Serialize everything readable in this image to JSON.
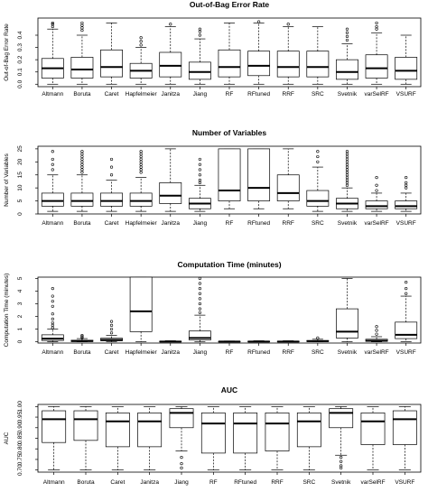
{
  "chart_data": [
    {
      "type": "boxplot",
      "title": "Out-of-Bag Error Rate",
      "ylabel": "Out-of-Bag Error Rate",
      "ylim": [
        -0.02,
        0.54
      ],
      "yticks": [
        0.0,
        0.1,
        0.2,
        0.3,
        0.4
      ],
      "ytick_labels": [
        "0.0",
        "0.1",
        "0.2",
        "0.3",
        "0.4"
      ],
      "categories": [
        "Altmann",
        "Boruta",
        "Caret",
        "Hapfelmeier",
        "Janitza",
        "Jiang",
        "RF",
        "RFtuned",
        "RRF",
        "SRC",
        "Svetnik",
        "varSelRF",
        "VSURF"
      ],
      "boxes": [
        {
          "min": 0.0,
          "q1": 0.05,
          "median": 0.13,
          "q3": 0.21,
          "max": 0.45,
          "outliers": [
            0.47,
            0.49,
            0.5
          ]
        },
        {
          "min": 0.0,
          "q1": 0.05,
          "median": 0.12,
          "q3": 0.22,
          "max": 0.4,
          "outliers": [
            0.44,
            0.46,
            0.48,
            0.5
          ]
        },
        {
          "min": 0.0,
          "q1": 0.06,
          "median": 0.14,
          "q3": 0.28,
          "max": 0.5,
          "outliers": []
        },
        {
          "min": 0.0,
          "q1": 0.05,
          "median": 0.11,
          "q3": 0.17,
          "max": 0.3,
          "outliers": [
            0.32,
            0.35,
            0.38
          ]
        },
        {
          "min": 0.0,
          "q1": 0.06,
          "median": 0.15,
          "q3": 0.26,
          "max": 0.47,
          "outliers": [
            0.49
          ]
        },
        {
          "min": 0.0,
          "q1": 0.04,
          "median": 0.1,
          "q3": 0.18,
          "max": 0.37,
          "outliers": [
            0.4,
            0.43,
            0.45
          ]
        },
        {
          "min": 0.0,
          "q1": 0.06,
          "median": 0.14,
          "q3": 0.28,
          "max": 0.5,
          "outliers": []
        },
        {
          "min": 0.0,
          "q1": 0.07,
          "median": 0.15,
          "q3": 0.27,
          "max": 0.5,
          "outliers": [
            0.51
          ]
        },
        {
          "min": 0.0,
          "q1": 0.06,
          "median": 0.14,
          "q3": 0.27,
          "max": 0.47,
          "outliers": [
            0.49
          ]
        },
        {
          "min": 0.0,
          "q1": 0.06,
          "median": 0.14,
          "q3": 0.27,
          "max": 0.47,
          "outliers": []
        },
        {
          "min": 0.0,
          "q1": 0.04,
          "median": 0.1,
          "q3": 0.2,
          "max": 0.33,
          "outliers": [
            0.36,
            0.39,
            0.42,
            0.45
          ]
        },
        {
          "min": 0.0,
          "q1": 0.05,
          "median": 0.13,
          "q3": 0.24,
          "max": 0.42,
          "outliers": [
            0.45,
            0.47,
            0.5
          ]
        },
        {
          "min": 0.0,
          "q1": 0.04,
          "median": 0.11,
          "q3": 0.22,
          "max": 0.4,
          "outliers": []
        }
      ]
    },
    {
      "type": "boxplot",
      "title": "Number of Variables",
      "ylabel": "Number of Variables",
      "ylim": [
        0,
        26
      ],
      "yticks": [
        0,
        5,
        10,
        15,
        20,
        25
      ],
      "ytick_labels": [
        "0",
        "5",
        "10",
        "15",
        "20",
        "25"
      ],
      "categories": [
        "Altmann",
        "Boruta",
        "Caret",
        "Hapfelmeier",
        "Janitza",
        "Jiang",
        "RF",
        "RFtuned",
        "RRF",
        "SRC",
        "Svetnik",
        "varSelRF",
        "VSURF"
      ],
      "boxes": [
        {
          "min": 1,
          "q1": 3,
          "median": 5,
          "q3": 8,
          "max": 15,
          "outliers": [
            17,
            19,
            21,
            24
          ]
        },
        {
          "min": 1,
          "q1": 3,
          "median": 5,
          "q3": 8,
          "max": 15,
          "outliers": [
            16,
            17,
            18,
            19,
            20,
            21,
            22,
            23,
            24
          ]
        },
        {
          "min": 1,
          "q1": 3,
          "median": 5,
          "q3": 8,
          "max": 13,
          "outliers": [
            15,
            18,
            21
          ]
        },
        {
          "min": 1,
          "q1": 3,
          "median": 5,
          "q3": 8,
          "max": 14,
          "outliers": [
            16,
            17,
            18,
            19,
            20,
            21,
            22,
            23,
            24
          ]
        },
        {
          "min": 1,
          "q1": 4,
          "median": 7,
          "q3": 12,
          "max": 25,
          "outliers": []
        },
        {
          "min": 1,
          "q1": 2,
          "median": 4,
          "q3": 6,
          "max": 11,
          "outliers": [
            12,
            13,
            15,
            17,
            19,
            21
          ]
        },
        {
          "min": 2,
          "q1": 5,
          "median": 9,
          "q3": 25,
          "max": 25,
          "outliers": []
        },
        {
          "min": 2,
          "q1": 5,
          "median": 10,
          "q3": 25,
          "max": 25,
          "outliers": []
        },
        {
          "min": 2,
          "q1": 5,
          "median": 8,
          "q3": 15,
          "max": 25,
          "outliers": []
        },
        {
          "min": 1,
          "q1": 3,
          "median": 5,
          "q3": 9,
          "max": 18,
          "outliers": [
            20,
            22,
            24
          ]
        },
        {
          "min": 1,
          "q1": 2,
          "median": 4,
          "q3": 6,
          "max": 10,
          "outliers": [
            11,
            12,
            13,
            14,
            15,
            16,
            17,
            18,
            19,
            20,
            21,
            22,
            23,
            24
          ]
        },
        {
          "min": 1,
          "q1": 2,
          "median": 3,
          "q3": 5,
          "max": 8,
          "outliers": [
            9,
            11,
            14
          ]
        },
        {
          "min": 1,
          "q1": 2,
          "median": 3,
          "q3": 5,
          "max": 8,
          "outliers": [
            10,
            11,
            12,
            14
          ]
        }
      ]
    },
    {
      "type": "boxplot",
      "title": "Computation Time (minutes)",
      "ylabel": "Computation Time (minutes)",
      "ylim": [
        -0.1,
        5.1
      ],
      "yticks": [
        0,
        1,
        2,
        3,
        4,
        5
      ],
      "ytick_labels": [
        "0",
        "1",
        "2",
        "3",
        "4",
        "5"
      ],
      "categories": [
        "Altmann",
        "Boruta",
        "Caret",
        "Hapfelmeier",
        "Janitza",
        "Jiang",
        "RF",
        "RFtuned",
        "RRF",
        "SRC",
        "Svetnik",
        "varSelRF",
        "VSURF"
      ],
      "boxes": [
        {
          "min": 0.0,
          "q1": 0.1,
          "median": 0.25,
          "q3": 0.55,
          "max": 1.0,
          "outliers": [
            1.1,
            1.3,
            1.5,
            1.8,
            2.2,
            2.8,
            3.2,
            3.6,
            4.2
          ]
        },
        {
          "min": 0.0,
          "q1": 0.02,
          "median": 0.06,
          "q3": 0.12,
          "max": 0.25,
          "outliers": [
            0.3,
            0.4,
            0.5
          ]
        },
        {
          "min": 0.0,
          "q1": 0.08,
          "median": 0.15,
          "q3": 0.28,
          "max": 0.5,
          "outliers": [
            0.7,
            1.0,
            1.3,
            1.6
          ]
        },
        {
          "min": 0.0,
          "q1": 0.8,
          "median": 2.4,
          "q3": 5.1,
          "max": 5.1,
          "outliers": []
        },
        {
          "min": 0.0,
          "q1": 0.01,
          "median": 0.02,
          "q3": 0.04,
          "max": 0.08,
          "outliers": []
        },
        {
          "min": 0.0,
          "q1": 0.15,
          "median": 0.3,
          "q3": 0.85,
          "max": 2.1,
          "outliers": [
            2.3,
            2.6,
            3.0,
            3.4,
            3.8,
            4.2,
            4.6,
            5.0
          ]
        },
        {
          "min": 0.0,
          "q1": 0.01,
          "median": 0.02,
          "q3": 0.03,
          "max": 0.06,
          "outliers": []
        },
        {
          "min": 0.0,
          "q1": 0.01,
          "median": 0.02,
          "q3": 0.04,
          "max": 0.08,
          "outliers": []
        },
        {
          "min": 0.0,
          "q1": 0.01,
          "median": 0.02,
          "q3": 0.04,
          "max": 0.08,
          "outliers": []
        },
        {
          "min": 0.0,
          "q1": 0.02,
          "median": 0.05,
          "q3": 0.1,
          "max": 0.2,
          "outliers": [
            0.3
          ]
        },
        {
          "min": 0.0,
          "q1": 0.3,
          "median": 0.8,
          "q3": 2.6,
          "max": 5.0,
          "outliers": []
        },
        {
          "min": 0.0,
          "q1": 0.03,
          "median": 0.08,
          "q3": 0.2,
          "max": 0.4,
          "outliers": [
            0.6,
            0.9,
            1.2
          ]
        },
        {
          "min": 0.0,
          "q1": 0.25,
          "median": 0.55,
          "q3": 1.55,
          "max": 3.6,
          "outliers": [
            3.8,
            4.2,
            4.7
          ]
        }
      ]
    },
    {
      "type": "boxplot",
      "title": "AUC",
      "ylabel": "AUC",
      "ylim": [
        0.69,
        1.01
      ],
      "yticks": [
        0.7,
        0.75,
        0.8,
        0.85,
        0.9,
        0.95,
        1.0
      ],
      "ytick_labels": [
        "0.70",
        "0.75",
        "0.80",
        "0.85",
        "0.90",
        "0.95",
        "1.00"
      ],
      "categories": [
        "Altmann",
        "Boruta",
        "Caret",
        "Janitza",
        "Jiang",
        "RF",
        "RFtuned",
        "RRF",
        "SRC",
        "Svetnik",
        "varSelRF",
        "VSURF"
      ],
      "boxes": [
        {
          "min": 0.7,
          "q1": 0.83,
          "median": 0.94,
          "q3": 0.98,
          "max": 1.0,
          "outliers": []
        },
        {
          "min": 0.7,
          "q1": 0.84,
          "median": 0.94,
          "q3": 0.98,
          "max": 1.0,
          "outliers": []
        },
        {
          "min": 0.7,
          "q1": 0.81,
          "median": 0.93,
          "q3": 0.97,
          "max": 1.0,
          "outliers": []
        },
        {
          "min": 0.7,
          "q1": 0.81,
          "median": 0.93,
          "q3": 0.97,
          "max": 1.0,
          "outliers": []
        },
        {
          "min": 0.79,
          "q1": 0.9,
          "median": 0.97,
          "q3": 0.99,
          "max": 1.0,
          "outliers": [
            0.76,
            0.73,
            0.71
          ]
        },
        {
          "min": 0.7,
          "q1": 0.78,
          "median": 0.92,
          "q3": 0.97,
          "max": 1.0,
          "outliers": []
        },
        {
          "min": 0.7,
          "q1": 0.78,
          "median": 0.92,
          "q3": 0.97,
          "max": 1.0,
          "outliers": []
        },
        {
          "min": 0.7,
          "q1": 0.79,
          "median": 0.92,
          "q3": 0.97,
          "max": 1.0,
          "outliers": []
        },
        {
          "min": 0.7,
          "q1": 0.81,
          "median": 0.93,
          "q3": 0.97,
          "max": 1.0,
          "outliers": []
        },
        {
          "min": 0.77,
          "q1": 0.9,
          "median": 0.97,
          "q3": 0.99,
          "max": 1.0,
          "outliers": [
            0.76,
            0.74,
            0.72,
            0.71
          ]
        },
        {
          "min": 0.7,
          "q1": 0.82,
          "median": 0.93,
          "q3": 0.97,
          "max": 1.0,
          "outliers": []
        },
        {
          "min": 0.7,
          "q1": 0.82,
          "median": 0.94,
          "q3": 0.98,
          "max": 1.0,
          "outliers": []
        }
      ]
    }
  ]
}
